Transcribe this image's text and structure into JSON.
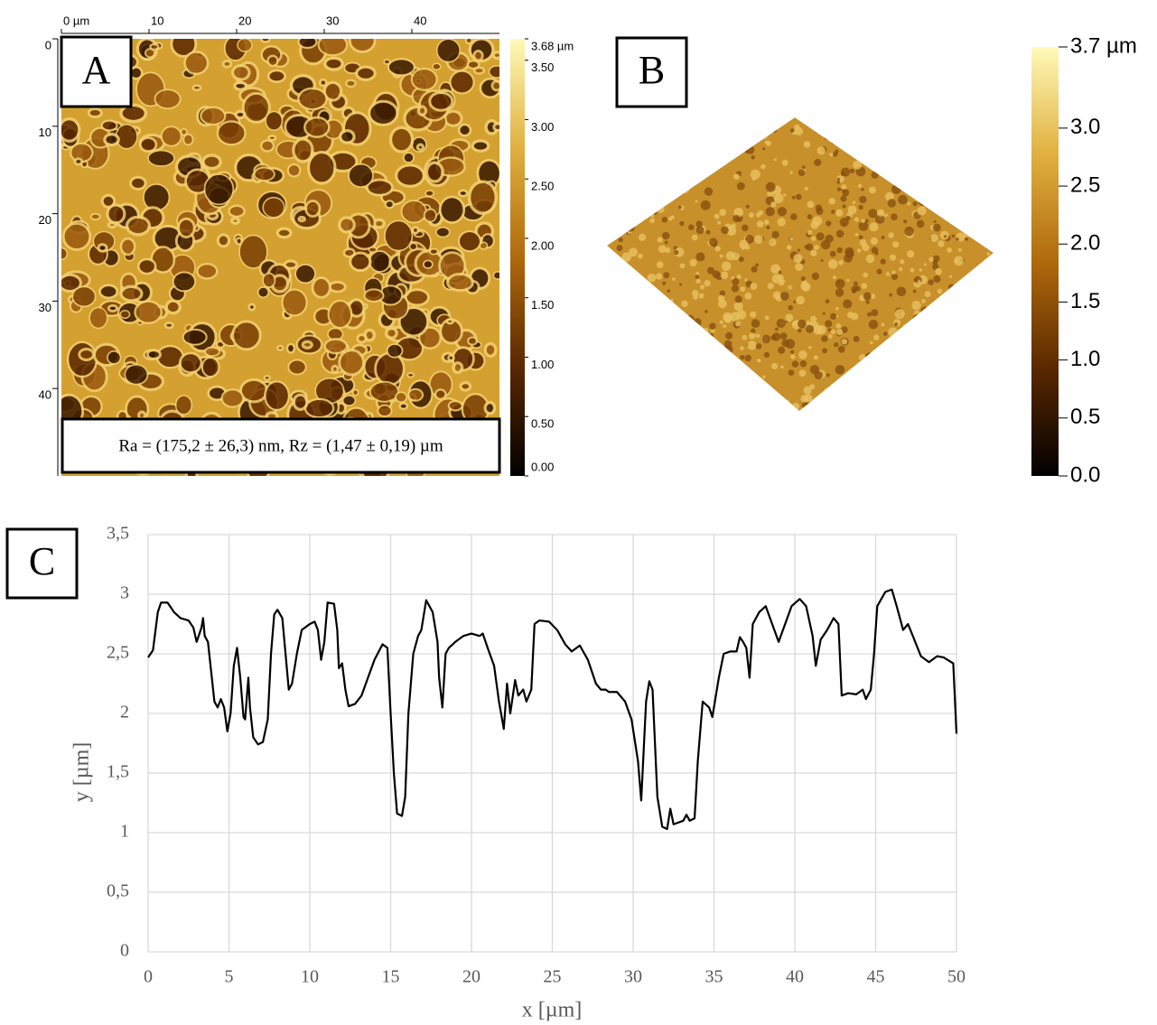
{
  "panels": [
    {
      "label": "A",
      "xlim": [
        0,
        50
      ],
      "ylim": [
        0,
        50
      ],
      "xticks": [
        {
          "value": 0,
          "label": "0 µm"
        },
        10,
        20,
        30,
        40
      ],
      "yticks": [
        0,
        10,
        20,
        30,
        40
      ],
      "annotation": "Ra = (175,2 ± 26,3) nm, Rz = (1,47 ± 0,19) µm",
      "colorbar": {
        "lim": [
          0,
          3.68
        ],
        "ticks": [
          {
            "value": 3.68,
            "label": "3.68 µm"
          },
          {
            "value": 3.5,
            "label": "3.50"
          },
          {
            "value": 3,
            "label": "3.00"
          },
          {
            "value": 2.5,
            "label": "2.50"
          },
          {
            "value": 2,
            "label": "2.00"
          },
          {
            "value": 1.5,
            "label": "1.50"
          },
          {
            "value": 1,
            "label": "1.00"
          },
          {
            "value": 0.5,
            "label": "0.50"
          },
          {
            "value": 0,
            "label": "0.00"
          }
        ]
      }
    },
    {
      "label": "B",
      "colorbar": {
        "lim": [
          0,
          3.7
        ],
        "ticks": [
          {
            "value": 3.7,
            "label": "3.7 µm"
          },
          {
            "value": 3,
            "label": "3.0"
          },
          {
            "value": 2.5,
            "label": "2.5"
          },
          {
            "value": 2,
            "label": "2.0"
          },
          {
            "value": 1.5,
            "label": "1.5"
          },
          {
            "value": 1,
            "label": "1.0"
          },
          {
            "value": 0.5,
            "label": "0.5"
          },
          {
            "value": 0,
            "label": "0.0"
          }
        ]
      }
    }
  ],
  "chart_data": {
    "type": "line",
    "panel_label": "C",
    "x_label": "x [µm]",
    "y_label": "y [µm]",
    "color": "#000000",
    "grid": true,
    "xlim": [
      0,
      50
    ],
    "ylim": [
      0,
      3.5
    ],
    "xticks": [
      0,
      5,
      10,
      15,
      20,
      25,
      30,
      35,
      40,
      45,
      50
    ],
    "yticks": [
      0,
      {
        "value": 0.5,
        "label": "0,5"
      },
      1,
      {
        "value": 1.5,
        "label": "1,5"
      },
      2,
      {
        "value": 2.5,
        "label": "2,5"
      },
      3,
      {
        "value": 3.5,
        "label": "3,5"
      }
    ],
    "x": [
      0,
      0.3,
      0.6,
      0.8,
      1.2,
      1.6,
      2,
      2.5,
      2.8,
      3,
      3.3,
      3.4,
      3.5,
      3.7,
      3.9,
      4.1,
      4.3,
      4.5,
      4.7,
      4.9,
      5.1,
      5.3,
      5.5,
      5.7,
      5.9,
      6,
      6.2,
      6.3,
      6.5,
      6.8,
      7.1,
      7.4,
      7.6,
      7.8,
      8,
      8.3,
      8.5,
      8.7,
      8.9,
      9.2,
      9.5,
      10,
      10.3,
      10.5,
      10.7,
      10.9,
      11.1,
      11.5,
      11.7,
      11.8,
      12,
      12.2,
      12.4,
      12.8,
      13.2,
      13.6,
      14,
      14.5,
      14.8,
      15,
      15.2,
      15.4,
      15.7,
      15.9,
      16.1,
      16.4,
      16.7,
      16.9,
      17.2,
      17.6,
      17.9,
      18,
      18.2,
      18.4,
      18.6,
      19,
      19.5,
      20,
      20.5,
      20.7,
      21,
      21.4,
      21.7,
      22,
      22.2,
      22.4,
      22.7,
      22.9,
      23.2,
      23.4,
      23.7,
      23.9,
      24.2,
      24.8,
      25.3,
      25.8,
      26.2,
      26.7,
      27.2,
      27.7,
      28,
      28.3,
      28.5,
      29,
      29.5,
      29.9,
      30.3,
      30.5,
      30.8,
      31,
      31.2,
      31.5,
      31.8,
      32.1,
      32.3,
      32.5,
      33.1,
      33.3,
      33.5,
      33.8,
      34,
      34.3,
      34.7,
      34.9,
      35.3,
      35.6,
      36,
      36.4,
      36.6,
      36.8,
      37,
      37.2,
      37.4,
      37.8,
      38.2,
      38.6,
      39,
      39.4,
      39.8,
      40.3,
      40.7,
      41.1,
      41.3,
      41.6,
      42,
      42.4,
      42.7,
      42.9,
      43.3,
      43.8,
      44.2,
      44.4,
      44.7,
      44.9,
      45.1,
      45.6,
      46,
      46.3,
      46.7,
      47,
      47.3,
      47.8,
      48.3,
      48.8,
      49.2,
      49.8,
      50
    ],
    "values": [
      2.47,
      2.53,
      2.85,
      2.93,
      2.93,
      2.85,
      2.8,
      2.78,
      2.72,
      2.6,
      2.72,
      2.8,
      2.65,
      2.6,
      2.35,
      2.1,
      2.05,
      2.12,
      2.05,
      1.85,
      2,
      2.4,
      2.55,
      2.3,
      1.97,
      1.95,
      2.3,
      2.05,
      1.8,
      1.74,
      1.76,
      1.95,
      2.5,
      2.83,
      2.87,
      2.8,
      2.5,
      2.2,
      2.25,
      2.5,
      2.7,
      2.75,
      2.77,
      2.7,
      2.45,
      2.6,
      2.93,
      2.92,
      2.7,
      2.38,
      2.42,
      2.2,
      2.06,
      2.08,
      2.15,
      2.3,
      2.45,
      2.58,
      2.55,
      2,
      1.5,
      1.16,
      1.14,
      1.3,
      2,
      2.5,
      2.65,
      2.7,
      2.95,
      2.85,
      2.6,
      2.3,
      2.05,
      2.5,
      2.55,
      2.6,
      2.65,
      2.67,
      2.65,
      2.67,
      2.55,
      2.4,
      2.1,
      1.87,
      2.25,
      2,
      2.28,
      2.15,
      2.2,
      2.1,
      2.2,
      2.75,
      2.78,
      2.77,
      2.7,
      2.58,
      2.52,
      2.57,
      2.45,
      2.25,
      2.2,
      2.2,
      2.18,
      2.18,
      2.1,
      1.95,
      1.6,
      1.27,
      2.1,
      2.27,
      2.2,
      1.3,
      1.05,
      1.03,
      1.2,
      1.07,
      1.1,
      1.15,
      1.1,
      1.12,
      1.6,
      2.1,
      2.05,
      1.97,
      2.3,
      2.5,
      2.52,
      2.52,
      2.64,
      2.6,
      2.55,
      2.3,
      2.75,
      2.85,
      2.9,
      2.75,
      2.6,
      2.75,
      2.9,
      2.96,
      2.9,
      2.65,
      2.4,
      2.62,
      2.7,
      2.8,
      2.75,
      2.15,
      2.17,
      2.16,
      2.2,
      2.12,
      2.2,
      2.5,
      2.9,
      3.02,
      3.04,
      2.9,
      2.7,
      2.75,
      2.65,
      2.48,
      2.43,
      2.48,
      2.47,
      2.42,
      1.83
    ]
  }
}
